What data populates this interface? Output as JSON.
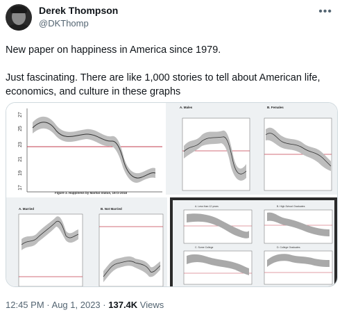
{
  "tweet": {
    "author_name": "Derek Thompson",
    "author_handle": "@DKThomp",
    "more_icon": "more-icon",
    "text_line1": "New paper on happiness in America since 1979.",
    "text_line2": "Just fascinating. There are like 1,000 stories to tell about American life, economics, and culture in these graphs",
    "time": "12:45 PM",
    "date": "Aug 1, 2023",
    "separator": "·",
    "views_count": "137.4K",
    "views_label": "Views"
  },
  "media": {
    "panel1": {
      "yticks": [
        "27",
        "25",
        "23",
        "21",
        "19",
        "17"
      ],
      "caption": "Figure 3.  Happiness by Marital Status, 1972-2018"
    },
    "panel2": {
      "label_a": "A. Males",
      "label_b": "B. Females"
    },
    "panel3": {
      "label_a": "A. Married",
      "label_b": "B. Not Married"
    },
    "panel4": {
      "label_a": "A. Less than 12 years",
      "label_b": "B. High School Graduates",
      "label_c": "C. Some College",
      "label_d": "D. College Graduates"
    }
  }
}
